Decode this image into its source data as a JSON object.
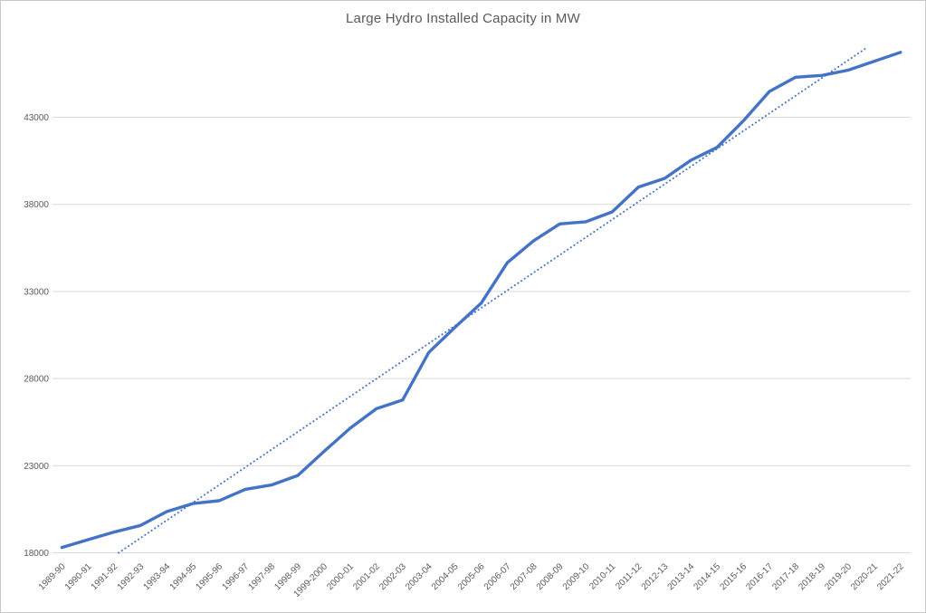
{
  "title": "Large Hydro Installed Capacity in MW",
  "chart_data": {
    "type": "line",
    "title": "Large Hydro Installed Capacity in MW",
    "xlabel": "",
    "ylabel": "",
    "categories": [
      "1989-90",
      "1990-91",
      "1991-92",
      "1992-93",
      "1993-94",
      "1994-95",
      "1995-96",
      "1996-97",
      "1997-98",
      "1998-99",
      "1999-2000",
      "2000-01",
      "2001-02",
      "2002-03",
      "2003-04",
      "2004-05",
      "2005-06",
      "2006-07",
      "2007-08",
      "2008-09",
      "2009-10",
      "2010-11",
      "2011-12",
      "2012-13",
      "2013-14",
      "2014-15",
      "2015-16",
      "2016-17",
      "2017-18",
      "2018-19",
      "2019-20",
      "2020-21",
      "2021-22"
    ],
    "series": [
      {
        "name": "Large Hydro Installed Capacity (MW)",
        "values": [
          18308,
          18753,
          19194,
          19569,
          20366,
          20829,
          20986,
          21644,
          21891,
          22438,
          23816,
          25153,
          26269,
          26767,
          29500,
          30942,
          32326,
          34654,
          35909,
          36878,
          37000,
          37567,
          38990,
          39491,
          40531,
          41267,
          42783,
          44478,
          45293,
          45399,
          45699,
          46209,
          46723
        ]
      }
    ],
    "trendline": {
      "type": "linear",
      "style": "dotted",
      "series": "Large Hydro Installed Capacity (MW)"
    },
    "yticks": [
      18000,
      23000,
      28000,
      33000,
      38000,
      43000
    ],
    "ylim": [
      18000,
      47000
    ],
    "grid": true,
    "legend": "none",
    "x_label_rotation_deg": -45,
    "colors": {
      "line": "#4472C4",
      "trend": "#4472C4",
      "grid": "#D9D9D9",
      "text": "#595959",
      "frame_border": "#C9C9C9",
      "background": "#FFFFFF"
    }
  }
}
